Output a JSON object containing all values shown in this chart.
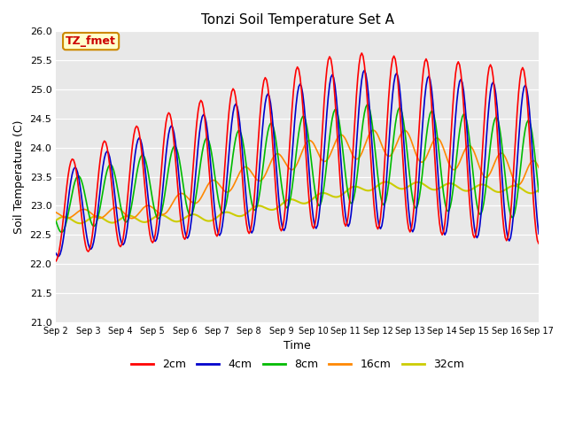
{
  "title": "Tonzi Soil Temperature Set A",
  "xlabel": "Time",
  "ylabel": "Soil Temperature (C)",
  "ylim": [
    21.0,
    26.0
  ],
  "yticks": [
    21.0,
    21.5,
    22.0,
    22.5,
    23.0,
    23.5,
    24.0,
    24.5,
    25.0,
    25.5,
    26.0
  ],
  "bg_color": "#e8e8e8",
  "annotation_text": "TZ_fmet",
  "annotation_bg": "#ffffcc",
  "annotation_border": "#cc8800",
  "series_colors": {
    "2cm": "#ff0000",
    "4cm": "#0000cc",
    "8cm": "#00bb00",
    "16cm": "#ff8800",
    "32cm": "#cccc00"
  },
  "legend_labels": [
    "2cm",
    "4cm",
    "8cm",
    "16cm",
    "32cm"
  ],
  "xtick_labels": [
    "Sep 2",
    "Sep 3",
    "Sep 4",
    "Sep 5",
    "Sep 6",
    "Sep 7",
    "Sep 8",
    "Sep 9",
    "Sep 10",
    "Sep 11",
    "Sep 12",
    "Sep 13",
    "Sep 14",
    "Sep 15",
    "Sep 16",
    "Sep 17"
  ]
}
